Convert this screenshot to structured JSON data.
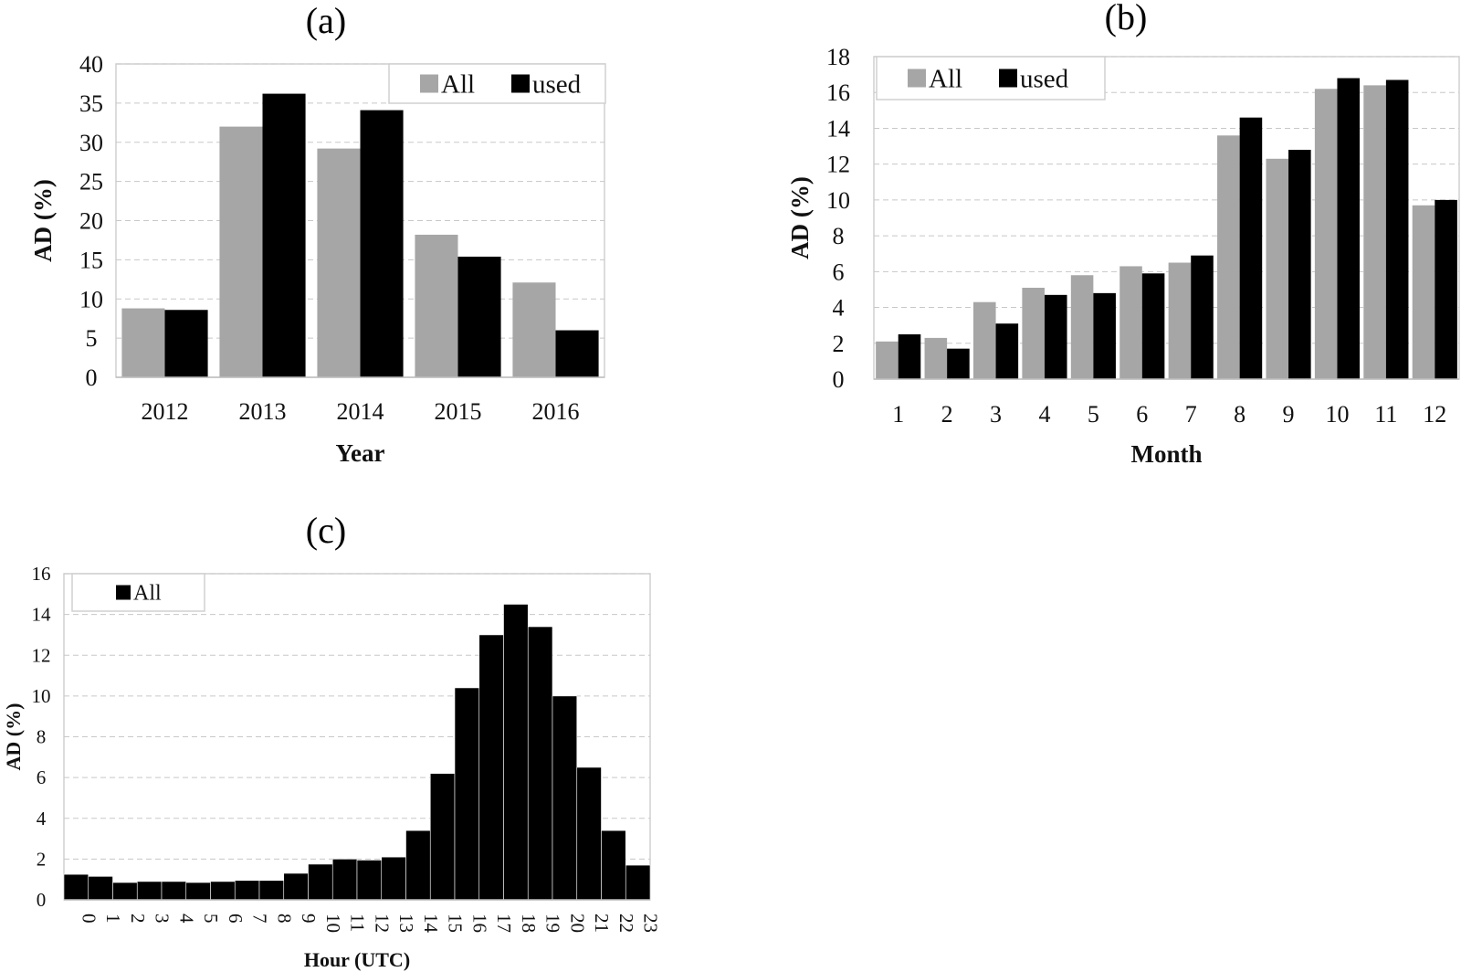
{
  "colors": {
    "all": "#a6a6a6",
    "used": "#000000"
  },
  "chart_data": [
    {
      "panel": "(a)",
      "type": "bar",
      "categories": [
        "2012",
        "2013",
        "2014",
        "2015",
        "2016"
      ],
      "series": [
        {
          "name": "All",
          "values": [
            8.8,
            32.0,
            29.2,
            18.2,
            12.1
          ]
        },
        {
          "name": "used",
          "values": [
            8.6,
            36.2,
            34.1,
            15.4,
            6.0
          ]
        }
      ],
      "xlabel": "Year",
      "ylabel": "AD (%)",
      "ylim": [
        0,
        40
      ],
      "yticks": [
        "0",
        "5",
        "10",
        "15",
        "20",
        "25",
        "30",
        "35",
        "40"
      ],
      "grid": true,
      "legend": "top-right"
    },
    {
      "panel": "(b)",
      "type": "bar",
      "categories": [
        "1",
        "2",
        "3",
        "4",
        "5",
        "6",
        "7",
        "8",
        "9",
        "10",
        "11",
        "12"
      ],
      "series": [
        {
          "name": "All",
          "values": [
            2.1,
            2.3,
            4.3,
            5.1,
            5.8,
            6.3,
            6.5,
            13.6,
            12.3,
            16.2,
            16.4,
            9.7
          ]
        },
        {
          "name": "used",
          "values": [
            2.5,
            1.7,
            3.1,
            4.7,
            4.8,
            5.9,
            6.9,
            14.6,
            12.8,
            16.8,
            16.7,
            10.0
          ]
        }
      ],
      "xlabel": "Month",
      "ylabel": "AD (%)",
      "ylim": [
        0,
        18
      ],
      "yticks": [
        "0",
        "2",
        "4",
        "6",
        "8",
        "10",
        "12",
        "14",
        "16",
        "18"
      ],
      "grid": true,
      "legend": "top-left"
    },
    {
      "panel": "(c)",
      "type": "bar",
      "categories": [
        "0",
        "1",
        "2",
        "3",
        "4",
        "5",
        "6",
        "7",
        "8",
        "9",
        "10",
        "11",
        "12",
        "13",
        "14",
        "15",
        "16",
        "17",
        "18",
        "19",
        "20",
        "21",
        "22",
        "23"
      ],
      "series": [
        {
          "name": "All",
          "values": [
            1.25,
            1.15,
            0.85,
            0.9,
            0.9,
            0.85,
            0.9,
            0.95,
            0.95,
            1.3,
            1.75,
            2.0,
            1.95,
            2.1,
            3.4,
            6.2,
            10.4,
            13.0,
            14.5,
            13.4,
            10.0,
            6.5,
            3.4,
            1.7
          ]
        }
      ],
      "xlabel": "Hour (UTC)",
      "ylabel": "AD (%)",
      "ylim": [
        0,
        16
      ],
      "yticks": [
        "0",
        "2",
        "4",
        "6",
        "8",
        "10",
        "12",
        "14",
        "16"
      ],
      "grid": true,
      "legend": "top-left"
    }
  ]
}
